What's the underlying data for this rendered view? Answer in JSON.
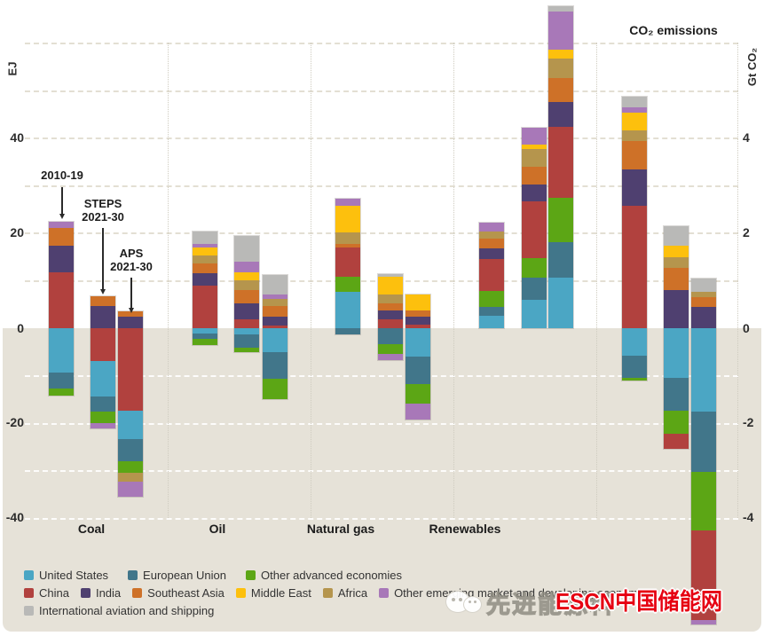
{
  "titles": {
    "right_panel": "CO₂ emissions"
  },
  "axes": {
    "left": {
      "unit_label": "EJ",
      "ticks": [
        "40",
        "20",
        "0",
        "-20",
        "-40"
      ]
    },
    "right": {
      "unit_label": "Gt CO₂",
      "ticks": [
        "4",
        "2",
        "0",
        "-2",
        "-4"
      ]
    }
  },
  "regions": {
    "united_states": {
      "label": "United States",
      "color": "#4ba6c4"
    },
    "european_union": {
      "label": "European Union",
      "color": "#41768a"
    },
    "other_advanced": {
      "label": "Other advanced economies",
      "color": "#5ca615"
    },
    "china": {
      "label": "China",
      "color": "#b1413e"
    },
    "india": {
      "label": "India",
      "color": "#4f4070"
    },
    "southeast_asia": {
      "label": "Southeast Asia",
      "color": "#ce7128"
    },
    "middle_east": {
      "label": "Middle East",
      "color": "#fdc00d"
    },
    "africa": {
      "label": "Africa",
      "color": "#b5954d"
    },
    "other_emde": {
      "label": "Other emerging market and developing economies",
      "color": "#a878b8"
    },
    "intl_aviation": {
      "label": "International aviation and shipping",
      "color": "#b9b9b7"
    }
  },
  "legend_rows": [
    [
      "united_states",
      "european_union",
      "other_advanced"
    ],
    [
      "china",
      "india",
      "southeast_asia",
      "middle_east",
      "africa",
      "other_emde"
    ],
    [
      "intl_aviation"
    ]
  ],
  "annotations": [
    {
      "lines": [
        "2010-19"
      ]
    },
    {
      "lines": [
        "STEPS",
        "2021-30"
      ]
    },
    {
      "lines": [
        "APS",
        "2021-30"
      ]
    }
  ],
  "watermark": {
    "icon": "wechat-icon",
    "gray_text": "先进能源科",
    "brand_text": "ESCN中国储能网"
  },
  "chart_data": {
    "type": "bar",
    "stacked": true,
    "bar_names": [
      "2010-19",
      "STEPS 2021-30",
      "APS 2021-30"
    ],
    "left_axis": {
      "label": "EJ",
      "tick_values": [
        40,
        20,
        0,
        -20,
        -40
      ],
      "gridline_step": 10,
      "range": [
        -45,
        70
      ]
    },
    "right_axis": {
      "label": "Gt CO₂",
      "tick_values": [
        4,
        2,
        0,
        -2,
        -4
      ],
      "gridline_step": 1,
      "range": [
        -6.5,
        5.5
      ]
    },
    "groups": [
      {
        "key": "coal",
        "label": "Coal",
        "unit": "EJ",
        "bars": [
          {
            "name": "2010-19",
            "segments": [
              [
                "other_emde",
                1.3
              ],
              [
                "southeast_asia",
                3.8
              ],
              [
                "india",
                5.5
              ],
              [
                "china",
                11.8
              ],
              [
                "united_states",
                -9.3
              ],
              [
                "european_union",
                -3.4
              ],
              [
                "other_advanced",
                -1.5
              ]
            ]
          },
          {
            "name": "STEPS 2021-30",
            "segments": [
              [
                "southeast_asia",
                2.0
              ],
              [
                "india",
                4.7
              ],
              [
                "china",
                -6.9
              ],
              [
                "united_states",
                -7.5
              ],
              [
                "european_union",
                -3.1
              ],
              [
                "other_advanced",
                -2.5
              ],
              [
                "other_emde",
                -1.1
              ]
            ]
          },
          {
            "name": "APS 2021-30",
            "segments": [
              [
                "southeast_asia",
                1.0
              ],
              [
                "india",
                2.5
              ],
              [
                "china",
                -17.4
              ],
              [
                "united_states",
                -5.9
              ],
              [
                "european_union",
                -4.7
              ],
              [
                "other_advanced",
                -2.5
              ],
              [
                "africa",
                -1.9
              ],
              [
                "other_emde",
                -3.1
              ]
            ]
          }
        ]
      },
      {
        "key": "oil",
        "label": "Oil",
        "unit": "EJ",
        "bars": [
          {
            "name": "2010-19",
            "segments": [
              [
                "intl_aviation",
                2.6
              ],
              [
                "other_emde",
                0.8
              ],
              [
                "middle_east",
                1.6
              ],
              [
                "africa",
                1.7
              ],
              [
                "southeast_asia",
                2.1
              ],
              [
                "india",
                2.6
              ],
              [
                "china",
                9.0
              ],
              [
                "united_states",
                -1.1
              ],
              [
                "european_union",
                -1.1
              ],
              [
                "other_advanced",
                -1.4
              ]
            ]
          },
          {
            "name": "STEPS 2021-30",
            "segments": [
              [
                "intl_aviation",
                5.3
              ],
              [
                "other_emde",
                2.3
              ],
              [
                "middle_east",
                1.8
              ],
              [
                "africa",
                2.0
              ],
              [
                "southeast_asia",
                2.8
              ],
              [
                "india",
                3.4
              ],
              [
                "china",
                1.8
              ],
              [
                "united_states",
                -1.4
              ],
              [
                "european_union",
                -2.8
              ],
              [
                "other_advanced",
                -0.8
              ]
            ]
          },
          {
            "name": "APS 2021-30",
            "segments": [
              [
                "intl_aviation",
                4.2
              ],
              [
                "other_emde",
                0.9
              ],
              [
                "africa",
                1.6
              ],
              [
                "southeast_asia",
                2.2
              ],
              [
                "india",
                1.9
              ],
              [
                "china",
                0.5
              ],
              [
                "united_states",
                -5.0
              ],
              [
                "european_union",
                -5.7
              ],
              [
                "other_advanced",
                -4.2
              ]
            ]
          }
        ]
      },
      {
        "key": "natural_gas",
        "label": "Natural gas",
        "unit": "EJ",
        "bars": [
          {
            "name": "2010-19",
            "segments": [
              [
                "other_emde",
                1.4
              ],
              [
                "middle_east",
                5.6
              ],
              [
                "africa",
                2.4
              ],
              [
                "southeast_asia",
                0.8
              ],
              [
                "china",
                6.2
              ],
              [
                "other_advanced",
                3.1
              ],
              [
                "united_states",
                7.7
              ],
              [
                "european_union",
                -1.4
              ]
            ]
          },
          {
            "name": "STEPS 2021-30",
            "segments": [
              [
                "intl_aviation",
                0.6
              ],
              [
                "middle_east",
                3.7
              ],
              [
                "africa",
                1.9
              ],
              [
                "southeast_asia",
                1.4
              ],
              [
                "india",
                1.9
              ],
              [
                "china",
                1.9
              ],
              [
                "european_union",
                -3.4
              ],
              [
                "other_advanced",
                -2.1
              ],
              [
                "other_emde",
                -1.3
              ]
            ]
          },
          {
            "name": "APS 2021-30",
            "segments": [
              [
                "middle_east",
                3.3
              ],
              [
                "southeast_asia",
                1.3
              ],
              [
                "india",
                1.7
              ],
              [
                "china",
                0.8
              ],
              [
                "united_states",
                -5.9
              ],
              [
                "european_union",
                -5.9
              ],
              [
                "other_advanced",
                -4.1
              ],
              [
                "other_emde",
                -3.3
              ]
            ]
          }
        ]
      },
      {
        "key": "renewables",
        "label": "Renewables",
        "unit": "EJ",
        "bars": [
          {
            "name": "2010-19",
            "segments": [
              [
                "other_emde",
                1.9
              ],
              [
                "africa",
                1.6
              ],
              [
                "southeast_asia",
                1.9
              ],
              [
                "india",
                2.4
              ],
              [
                "china",
                6.7
              ],
              [
                "other_advanced",
                3.4
              ],
              [
                "european_union",
                1.8
              ],
              [
                "united_states",
                2.6
              ]
            ]
          },
          {
            "name": "STEPS 2021-30",
            "segments": [
              [
                "other_emde",
                3.7
              ],
              [
                "middle_east",
                0.9
              ],
              [
                "africa",
                3.7
              ],
              [
                "southeast_asia",
                3.7
              ],
              [
                "india",
                3.6
              ],
              [
                "china",
                12.0
              ],
              [
                "other_advanced",
                4.1
              ],
              [
                "european_union",
                4.7
              ],
              [
                "united_states",
                5.9
              ]
            ]
          },
          {
            "name": "APS 2021-30",
            "segments": [
              [
                "intl_aviation",
                1.1
              ],
              [
                "other_emde",
                8.0
              ],
              [
                "middle_east",
                1.9
              ],
              [
                "africa",
                4.1
              ],
              [
                "southeast_asia",
                5.0
              ],
              [
                "india",
                5.3
              ],
              [
                "china",
                15.0
              ],
              [
                "other_advanced",
                9.3
              ],
              [
                "european_union",
                7.5
              ],
              [
                "united_states",
                10.6
              ]
            ]
          }
        ]
      },
      {
        "key": "co2",
        "label": "CO₂ emissions",
        "unit": "Gt CO₂",
        "bars": [
          {
            "name": "2010-19",
            "segments": [
              [
                "intl_aviation",
                0.22
              ],
              [
                "other_emde",
                0.12
              ],
              [
                "middle_east",
                0.37
              ],
              [
                "africa",
                0.22
              ],
              [
                "southeast_asia",
                0.61
              ],
              [
                "india",
                0.77
              ],
              [
                "china",
                2.57
              ],
              [
                "united_states",
                -0.59
              ],
              [
                "european_union",
                -0.45
              ],
              [
                "other_advanced",
                -0.06
              ]
            ]
          },
          {
            "name": "STEPS 2021-30",
            "segments": [
              [
                "intl_aviation",
                0.41
              ],
              [
                "middle_east",
                0.25
              ],
              [
                "africa",
                0.21
              ],
              [
                "southeast_asia",
                0.48
              ],
              [
                "india",
                0.8
              ],
              [
                "united_states",
                -1.04
              ],
              [
                "european_union",
                -0.69
              ],
              [
                "other_advanced",
                -0.49
              ],
              [
                "china",
                -0.32
              ]
            ]
          },
          {
            "name": "APS 2021-30",
            "segments": [
              [
                "intl_aviation",
                0.27
              ],
              [
                "africa",
                0.12
              ],
              [
                "southeast_asia",
                0.2
              ],
              [
                "india",
                0.45
              ],
              [
                "united_states",
                -1.76
              ],
              [
                "european_union",
                -1.27
              ],
              [
                "other_advanced",
                -1.23
              ],
              [
                "china",
                -1.9
              ],
              [
                "other_emde",
                -0.08
              ]
            ]
          }
        ]
      }
    ]
  }
}
